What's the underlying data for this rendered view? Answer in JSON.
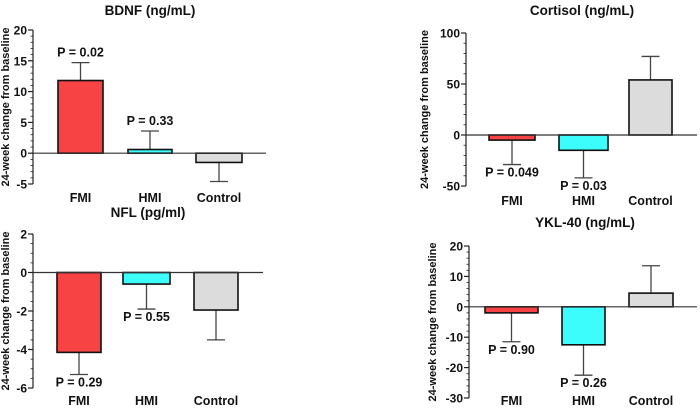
{
  "chart_data": [
    {
      "type": "bar",
      "title": "BDNF (ng/mL)",
      "ylabel": "24-week change from baseline",
      "categories": [
        "FMI",
        "HMI",
        "Control"
      ],
      "values": [
        11.8,
        0.6,
        -1.5
      ],
      "error": [
        2.9,
        3.0,
        3.1
      ],
      "p_values": [
        "P = 0.02",
        "P = 0.33",
        ""
      ],
      "ylim": [
        -5,
        20
      ],
      "yticks": [
        -5,
        0,
        5,
        10,
        15,
        20
      ],
      "minor_step": 1,
      "grid": false
    },
    {
      "type": "bar",
      "title": "Cortisol (ng/mL)",
      "ylabel": "24-week change from baseline",
      "categories": [
        "FMI",
        "HMI",
        "Control"
      ],
      "values": [
        -5,
        -15,
        54
      ],
      "error": [
        24,
        27,
        23
      ],
      "p_values": [
        "P = 0.049",
        "P = 0.03",
        ""
      ],
      "ylim": [
        -50,
        100
      ],
      "yticks": [
        -50,
        0,
        50,
        100
      ],
      "minor_step": 10,
      "grid": false
    },
    {
      "type": "bar",
      "title": "NFL (pg/ml)",
      "ylabel": "24-week change from baseline",
      "categories": [
        "FMI",
        "HMI",
        "Control"
      ],
      "values": [
        -4.15,
        -0.6,
        -1.95
      ],
      "error": [
        1.15,
        1.3,
        1.55
      ],
      "p_values": [
        "P = 0.29",
        "P = 0.55",
        ""
      ],
      "ylim": [
        -6,
        2
      ],
      "yticks": [
        -6,
        -4,
        -2,
        0,
        2
      ],
      "minor_step": 0.5,
      "grid": false
    },
    {
      "type": "bar",
      "title": "YKL-40 (ng/mL)",
      "ylabel": "24-week change from baseline",
      "categories": [
        "FMI",
        "HMI",
        "Control"
      ],
      "values": [
        -2,
        -12.5,
        4.5
      ],
      "error": [
        9.5,
        10,
        9
      ],
      "p_values": [
        "P = 0.90",
        "P = 0.26",
        ""
      ],
      "ylim": [
        -30,
        20
      ],
      "yticks": [
        -30,
        -20,
        -10,
        0,
        10,
        20
      ],
      "minor_step": 2,
      "grid": false
    }
  ],
  "colors": {
    "FMI": "#f74343",
    "HMI": "#3cfcfc",
    "Control": "#dcdcdc"
  }
}
